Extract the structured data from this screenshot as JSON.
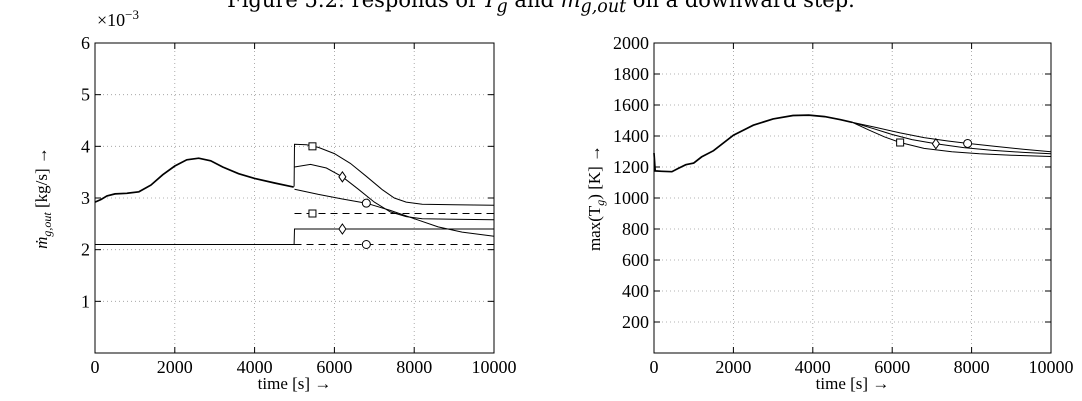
{
  "caption": "Figure 5.2: responds of T_g and ṁ_{g,out} on a downward step.",
  "caption_parts": {
    "prefix": "Figure 5.2: responds of ",
    "t_sym": "T",
    "t_sub": "g",
    "mid": " and ",
    "m_sym": "ṁ",
    "m_sub": "g,out",
    "suffix": " on a downward step."
  },
  "chart_data": [
    {
      "type": "line",
      "title": "",
      "xlabel": "time [s] →",
      "ylabel": "ṁ_{g,out} [kg/s] →",
      "ylabel_parts": {
        "sym": "ṁ",
        "sub": "g,out",
        "rest": " [kg/s] →"
      },
      "y_multiplier": "×10⁻³",
      "y_multiplier_parts": {
        "base": "×10",
        "exp": "−3"
      },
      "xlim": [
        0,
        10000
      ],
      "ylim": [
        0,
        6
      ],
      "xticks": [
        0,
        2000,
        4000,
        6000,
        8000,
        10000
      ],
      "yticks": [
        1,
        2,
        3,
        4,
        5,
        6
      ],
      "grid": true,
      "series": [
        {
          "style": "solid-thick",
          "points": [
            [
              0,
              2.92
            ],
            [
              150,
              2.97
            ],
            [
              300,
              3.04
            ],
            [
              500,
              3.08
            ],
            [
              800,
              3.09
            ],
            [
              1100,
              3.12
            ],
            [
              1400,
              3.25
            ],
            [
              1700,
              3.45
            ],
            [
              2000,
              3.62
            ],
            [
              2300,
              3.74
            ],
            [
              2600,
              3.77
            ],
            [
              2900,
              3.72
            ],
            [
              3200,
              3.6
            ],
            [
              3600,
              3.47
            ],
            [
              4000,
              3.38
            ],
            [
              4500,
              3.29
            ],
            [
              4980,
              3.21
            ]
          ]
        },
        {
          "style": "solid",
          "marker": "square",
          "marker_at": [
            5450,
            4.0
          ],
          "points": [
            [
              4990,
              3.22
            ],
            [
              5000,
              4.04
            ],
            [
              5300,
              4.03
            ],
            [
              5600,
              3.98
            ],
            [
              6000,
              3.86
            ],
            [
              6400,
              3.67
            ],
            [
              6800,
              3.42
            ],
            [
              7200,
              3.16
            ],
            [
              7500,
              3.0
            ],
            [
              7800,
              2.92
            ],
            [
              8200,
              2.88
            ],
            [
              9000,
              2.87
            ],
            [
              10000,
              2.86
            ]
          ]
        },
        {
          "style": "solid",
          "marker": "diamond",
          "marker_at": [
            6200,
            3.41
          ],
          "points": [
            [
              5000,
              3.6
            ],
            [
              5400,
              3.65
            ],
            [
              5800,
              3.58
            ],
            [
              6200,
              3.41
            ],
            [
              6600,
              3.17
            ],
            [
              7000,
              2.92
            ],
            [
              7400,
              2.73
            ],
            [
              7800,
              2.64
            ],
            [
              8200,
              2.6
            ],
            [
              9000,
              2.59
            ],
            [
              10000,
              2.58
            ]
          ]
        },
        {
          "style": "solid",
          "marker": "circle",
          "marker_at": [
            6800,
            2.9
          ],
          "points": [
            [
              5000,
              3.17
            ],
            [
              5600,
              3.07
            ],
            [
              6200,
              2.98
            ],
            [
              6800,
              2.9
            ],
            [
              7400,
              2.76
            ],
            [
              8000,
              2.6
            ],
            [
              8600,
              2.44
            ],
            [
              9200,
              2.34
            ],
            [
              10000,
              2.26
            ]
          ]
        },
        {
          "style": "solid",
          "points": [
            [
              0,
              2.1
            ],
            [
              4990,
              2.1
            ],
            [
              5000,
              2.4
            ],
            [
              10000,
              2.4
            ]
          ]
        },
        {
          "style": "dashed",
          "points": [
            [
              0,
              2.1
            ],
            [
              4990,
              2.1
            ]
          ]
        },
        {
          "style": "dashed",
          "marker": "square",
          "marker_at": [
            5450,
            2.7
          ],
          "points": [
            [
              5000,
              2.7
            ],
            [
              10000,
              2.7
            ]
          ]
        },
        {
          "style": "dashed",
          "marker": "diamond",
          "marker_at": [
            6200,
            2.4
          ],
          "points": [
            [
              5000,
              2.4
            ],
            [
              10000,
              2.4
            ]
          ]
        },
        {
          "style": "dashed",
          "marker": "circle",
          "marker_at": [
            6800,
            2.1
          ],
          "points": [
            [
              5000,
              2.1
            ],
            [
              10000,
              2.1
            ]
          ]
        }
      ]
    },
    {
      "type": "line",
      "title": "",
      "xlabel": "time [s] →",
      "ylabel": "max(T_g) [K] →",
      "ylabel_parts": {
        "pre": "max(T",
        "sub": "g",
        "rest": ") [K] →"
      },
      "xlim": [
        0,
        10000
      ],
      "ylim": [
        0,
        2000
      ],
      "xticks": [
        0,
        2000,
        4000,
        6000,
        8000,
        10000
      ],
      "yticks": [
        200,
        400,
        600,
        800,
        1000,
        1200,
        1400,
        1600,
        1800,
        2000
      ],
      "grid": true,
      "series": [
        {
          "style": "solid-thick",
          "points": [
            [
              0,
              1290
            ],
            [
              30,
              1175
            ],
            [
              200,
              1172
            ],
            [
              450,
              1170
            ],
            [
              600,
              1190
            ],
            [
              800,
              1215
            ],
            [
              1000,
              1225
            ],
            [
              1200,
              1265
            ],
            [
              1500,
              1305
            ],
            [
              2000,
              1405
            ],
            [
              2500,
              1470
            ],
            [
              3000,
              1510
            ],
            [
              3500,
              1532
            ],
            [
              3900,
              1535
            ],
            [
              4300,
              1525
            ],
            [
              4700,
              1505
            ],
            [
              5000,
              1488
            ]
          ]
        },
        {
          "style": "solid",
          "marker": "square",
          "marker_at": [
            6200,
            1358
          ],
          "points": [
            [
              5000,
              1488
            ],
            [
              5400,
              1440
            ],
            [
              5800,
              1395
            ],
            [
              6200,
              1358
            ],
            [
              6800,
              1320
            ],
            [
              7500,
              1298
            ],
            [
              8200,
              1285
            ],
            [
              9000,
              1276
            ],
            [
              10000,
              1268
            ]
          ]
        },
        {
          "style": "solid",
          "marker": "diamond",
          "marker_at": [
            7100,
            1350
          ],
          "points": [
            [
              5000,
              1488
            ],
            [
              5500,
              1450
            ],
            [
              6000,
              1410
            ],
            [
              6500,
              1377
            ],
            [
              7100,
              1350
            ],
            [
              7800,
              1325
            ],
            [
              8500,
              1308
            ],
            [
              9300,
              1294
            ],
            [
              10000,
              1285
            ]
          ]
        },
        {
          "style": "solid",
          "marker": "circle",
          "marker_at": [
            7900,
            1352
          ],
          "points": [
            [
              5000,
              1488
            ],
            [
              5600,
              1455
            ],
            [
              6200,
              1420
            ],
            [
              6800,
              1390
            ],
            [
              7400,
              1368
            ],
            [
              7900,
              1352
            ],
            [
              8600,
              1333
            ],
            [
              9300,
              1314
            ],
            [
              10000,
              1298
            ]
          ]
        }
      ]
    }
  ]
}
